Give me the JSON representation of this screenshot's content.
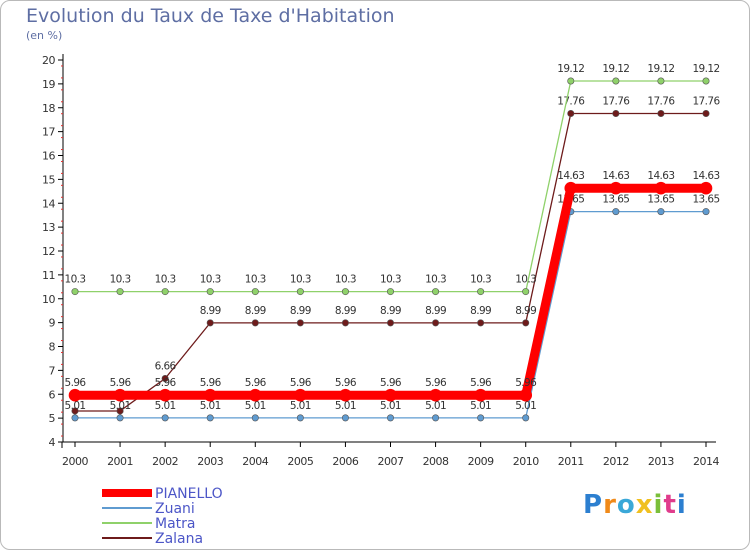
{
  "title": "Evolution du Taux de Taxe d'Habitation",
  "unit": "(en %)",
  "logo": "Proxiti",
  "chart_data": {
    "type": "line",
    "title": "Evolution du Taux de Taxe d'Habitation",
    "ylabel": "(en %)",
    "xlabel": "",
    "ylim": [
      4,
      20
    ],
    "yticks": [
      "4",
      "5",
      "6",
      "7",
      "8",
      "9",
      "10",
      "11",
      "12",
      "13",
      "14",
      "15",
      "16",
      "17",
      "18",
      "19",
      "20"
    ],
    "x": [
      "2000",
      "2001",
      "2002",
      "2003",
      "2004",
      "2005",
      "2006",
      "2007",
      "2008",
      "2009",
      "2010",
      "2011",
      "2012",
      "2013",
      "2014"
    ],
    "grid": false,
    "legend": "bottom-left",
    "series": [
      {
        "name": "Zalana",
        "color": "#6e1b1b",
        "width": 1.3,
        "values": [
          5.3,
          5.3,
          6.66,
          8.99,
          8.99,
          8.99,
          8.99,
          8.99,
          8.99,
          8.99,
          8.99,
          17.76,
          17.76,
          17.76,
          17.76
        ],
        "labels": [
          "",
          "",
          "6.66",
          "8.99",
          "8.99",
          "8.99",
          "8.99",
          "8.99",
          "8.99",
          "8.99",
          "8.99",
          "17.76",
          "17.76",
          "17.76",
          "17.76"
        ]
      },
      {
        "name": "Matra",
        "color": "#8fd16a",
        "width": 1.3,
        "values": [
          10.3,
          10.3,
          10.3,
          10.3,
          10.3,
          10.3,
          10.3,
          10.3,
          10.3,
          10.3,
          10.3,
          19.12,
          19.12,
          19.12,
          19.12
        ],
        "labels": [
          "10.3",
          "10.3",
          "10.3",
          "10.3",
          "10.3",
          "10.3",
          "10.3",
          "10.3",
          "10.3",
          "10.3",
          "10.3",
          "19.12",
          "19.12",
          "19.12",
          "19.12"
        ]
      },
      {
        "name": "Zuani",
        "color": "#5f9bd0",
        "width": 1.3,
        "values": [
          5.01,
          5.01,
          5.01,
          5.01,
          5.01,
          5.01,
          5.01,
          5.01,
          5.01,
          5.01,
          5.01,
          13.65,
          13.65,
          13.65,
          13.65
        ],
        "labels": [
          "5.01",
          "5.01",
          "5.01",
          "5.01",
          "5.01",
          "5.01",
          "5.01",
          "5.01",
          "5.01",
          "5.01",
          "5.01",
          "13.65",
          "13.65",
          "13.65",
          "13.65"
        ]
      },
      {
        "name": "PIANELLO",
        "color": "#ff0000",
        "width": 9,
        "values": [
          5.96,
          5.96,
          5.96,
          5.96,
          5.96,
          5.96,
          5.96,
          5.96,
          5.96,
          5.96,
          5.96,
          14.63,
          14.63,
          14.63,
          14.63
        ],
        "labels": [
          "5.96",
          "5.96",
          "5.96",
          "5.96",
          "5.96",
          "5.96",
          "5.96",
          "5.96",
          "5.96",
          "5.96",
          "5.96",
          "14.63",
          "14.63",
          "14.63",
          "14.63"
        ]
      }
    ],
    "legend_order": [
      "PIANELLO",
      "Zuani",
      "Matra",
      "Zalana"
    ]
  }
}
